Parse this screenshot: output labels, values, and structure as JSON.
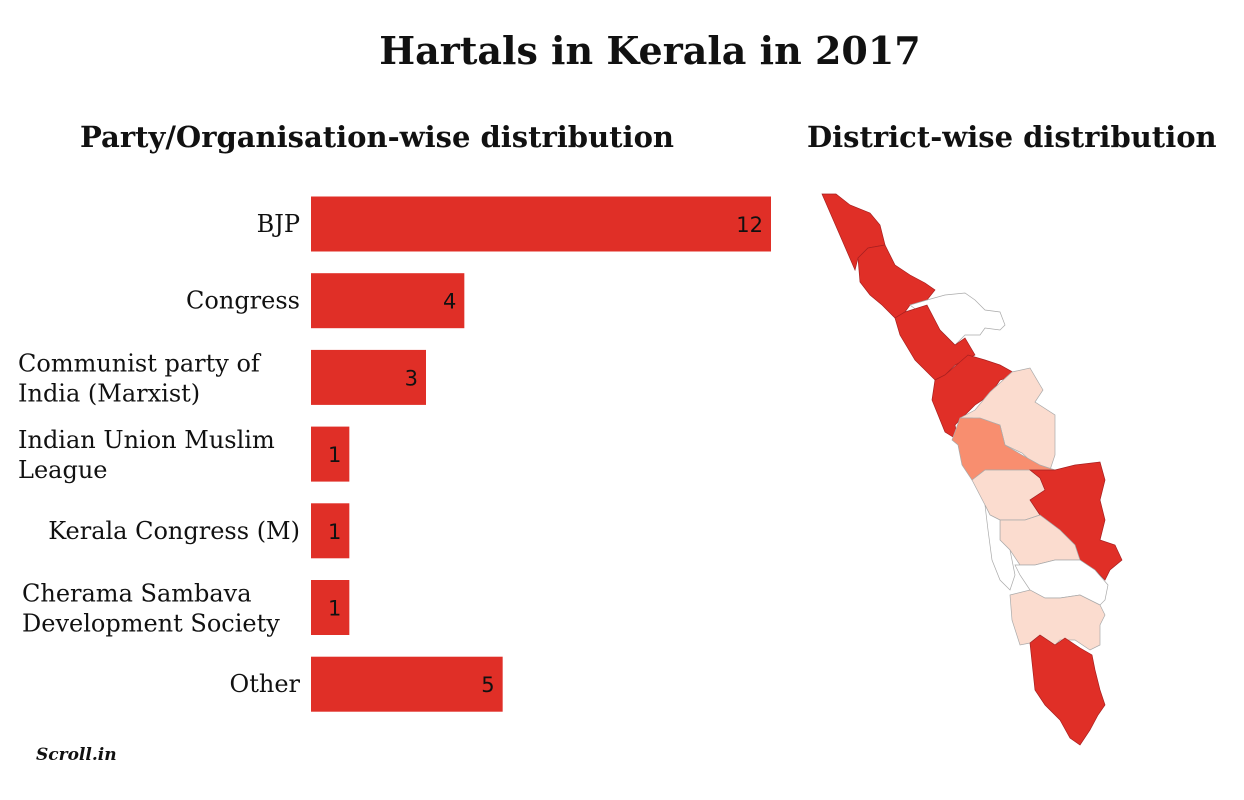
{
  "title": "Hartals in Kerala in 2017",
  "logo": "Scroll.in",
  "chart_data": [
    {
      "type": "bar",
      "orientation": "horizontal",
      "title": "Party/Organisation-wise distribution",
      "categories": [
        [
          "BJP"
        ],
        [
          "Congress"
        ],
        [
          "Communist party of",
          "India (Marxist)"
        ],
        [
          "Indian Union Muslim",
          "League"
        ],
        [
          "Kerala Congress (M)"
        ],
        [
          "Cherama Sambava",
          "Development Society"
        ],
        [
          "Other"
        ]
      ],
      "values": [
        12,
        4,
        3,
        1,
        1,
        1,
        5
      ],
      "xlim": [
        0,
        12
      ],
      "grid": false,
      "bar_color": "#e02f27"
    },
    {
      "type": "choropleth",
      "title": "District-wise distribution",
      "colors": {
        "high": "#e02f27",
        "medium": "#f88e6f",
        "low": "#fbdccf",
        "none": "#ffffff"
      }
    }
  ]
}
